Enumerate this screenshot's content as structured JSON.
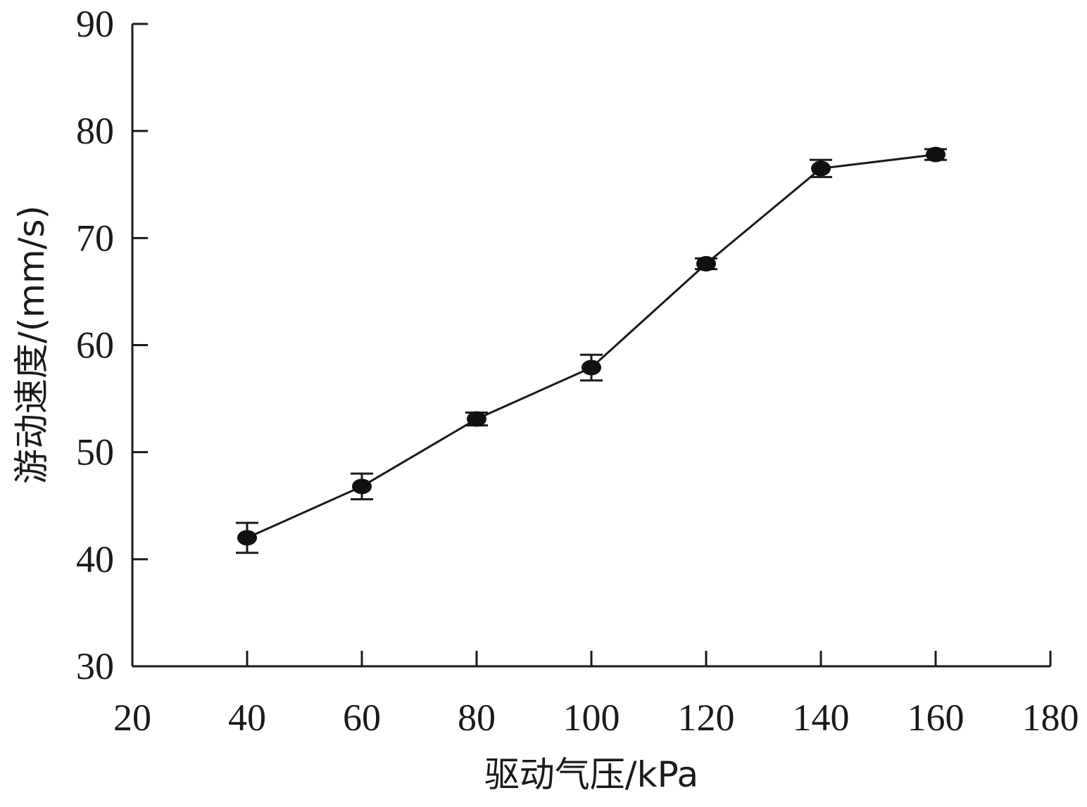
{
  "chart_data": {
    "type": "line",
    "title": "",
    "xlabel": "驱动气压/kPa",
    "ylabel": "游动速度/(mm/s)",
    "xlim": [
      20,
      180
    ],
    "ylim": [
      30,
      90
    ],
    "xticks": [
      20,
      40,
      60,
      80,
      100,
      120,
      140,
      160,
      180
    ],
    "yticks": [
      30,
      40,
      50,
      60,
      70,
      80,
      90
    ],
    "grid": false,
    "legend": "none",
    "series": [
      {
        "x": [
          40,
          60,
          80,
          100,
          120,
          140,
          160
        ],
        "y": [
          42.0,
          46.8,
          53.1,
          57.9,
          67.6,
          76.5,
          77.8
        ],
        "error": [
          1.4,
          1.2,
          0.6,
          1.2,
          0.5,
          0.8,
          0.5
        ],
        "color": "#111111",
        "marker": "circle"
      }
    ]
  }
}
